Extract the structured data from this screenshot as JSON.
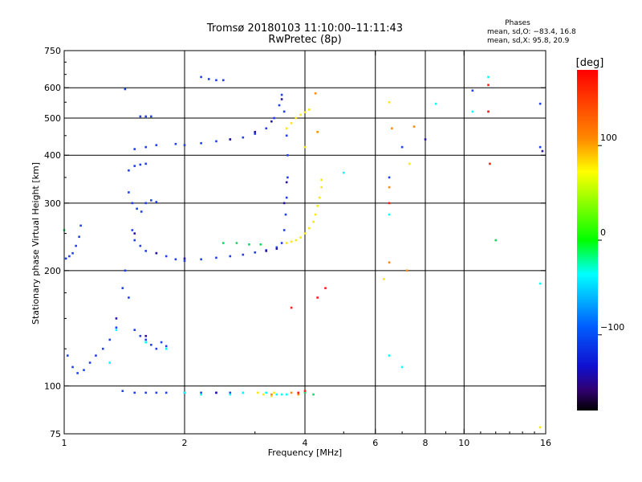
{
  "chart_data": {
    "type": "scatter",
    "title": "Tromsø 20180103 11:10:00–11:11:43",
    "subtitle": "RwPretec (8p)",
    "xlabel": "Frequency [MHz]",
    "ylabel": "Stationary phase Virtual Height [km]",
    "x_scale": "log",
    "y_scale": "log",
    "xlim": [
      1,
      16
    ],
    "ylim": [
      75,
      750
    ],
    "x_ticks": [
      1,
      2,
      4,
      6,
      8,
      10,
      16
    ],
    "x_tick_labels": [
      "1",
      "2",
      "4",
      "6",
      "8",
      "10",
      "16"
    ],
    "x_grid": [
      2,
      4,
      6,
      8,
      10
    ],
    "y_ticks": [
      75,
      100,
      200,
      300,
      400,
      500,
      600,
      750
    ],
    "y_tick_labels": [
      "75",
      "100",
      "200",
      "300",
      "400",
      "500",
      "600",
      "750"
    ],
    "y_grid": [
      100,
      200,
      300,
      400,
      500,
      600
    ],
    "grid": true,
    "legend": {
      "title": "Phases",
      "line_o": "mean, sd,O: −83.4, 16.8",
      "line_x": "mean, sd,X:  95.8, 20.9",
      "placement": "top-right"
    },
    "colorbar": {
      "label": "[deg]",
      "range": [
        -180,
        180
      ],
      "ticks": [
        100,
        0,
        -100
      ],
      "tick_labels": [
        "100",
        "0",
        "−100"
      ],
      "colormap": "rainbow"
    },
    "series": [
      {
        "phase": -95,
        "color": "#1f3ff0",
        "points": [
          [
            1.01,
            215
          ],
          [
            1.03,
            218
          ],
          [
            1.05,
            222
          ],
          [
            1.07,
            232
          ],
          [
            1.09,
            245
          ],
          [
            1.1,
            262
          ],
          [
            1.02,
            120
          ],
          [
            1.05,
            112
          ],
          [
            1.08,
            108
          ],
          [
            1.12,
            110
          ],
          [
            1.16,
            115
          ],
          [
            1.2,
            120
          ],
          [
            1.25,
            125
          ],
          [
            1.3,
            132
          ],
          [
            1.35,
            142
          ],
          [
            1.4,
            180
          ],
          [
            1.42,
            200
          ],
          [
            1.45,
            170
          ],
          [
            1.5,
            140
          ],
          [
            1.55,
            135
          ],
          [
            1.6,
            132
          ],
          [
            1.65,
            128
          ],
          [
            1.7,
            125
          ],
          [
            1.75,
            130
          ],
          [
            1.8,
            127
          ],
          [
            1.45,
            365
          ],
          [
            1.5,
            375
          ],
          [
            1.55,
            378
          ],
          [
            1.6,
            380
          ],
          [
            1.45,
            320
          ],
          [
            1.48,
            300
          ],
          [
            1.52,
            290
          ],
          [
            1.56,
            285
          ],
          [
            1.6,
            300
          ],
          [
            1.65,
            305
          ],
          [
            1.7,
            302
          ],
          [
            1.48,
            255
          ],
          [
            1.5,
            240
          ],
          [
            1.55,
            232
          ],
          [
            1.6,
            225
          ],
          [
            1.7,
            222
          ],
          [
            1.8,
            218
          ],
          [
            1.9,
            214
          ],
          [
            2.0,
            212
          ],
          [
            2.2,
            214
          ],
          [
            2.4,
            216
          ],
          [
            2.6,
            218
          ],
          [
            2.8,
            220
          ],
          [
            3.0,
            223
          ],
          [
            3.2,
            226
          ],
          [
            3.4,
            230
          ],
          [
            3.5,
            236
          ],
          [
            3.55,
            255
          ],
          [
            3.58,
            280
          ],
          [
            3.6,
            310
          ],
          [
            3.62,
            350
          ],
          [
            3.62,
            400
          ],
          [
            3.6,
            450
          ],
          [
            3.55,
            520
          ],
          [
            3.5,
            575
          ],
          [
            3.45,
            540
          ],
          [
            3.35,
            500
          ],
          [
            3.2,
            470
          ],
          [
            3.0,
            455
          ],
          [
            2.8,
            445
          ],
          [
            2.6,
            440
          ],
          [
            2.4,
            435
          ],
          [
            2.2,
            430
          ],
          [
            2.0,
            425
          ],
          [
            1.9,
            428
          ],
          [
            1.7,
            425
          ],
          [
            1.6,
            420
          ],
          [
            1.5,
            415
          ],
          [
            1.55,
            505
          ],
          [
            1.6,
            505
          ],
          [
            1.65,
            505
          ],
          [
            1.4,
            97
          ],
          [
            1.5,
            96
          ],
          [
            1.6,
            96
          ],
          [
            1.7,
            96
          ],
          [
            1.8,
            96
          ],
          [
            2.0,
            96
          ],
          [
            2.2,
            96
          ],
          [
            2.4,
            96
          ],
          [
            2.6,
            96
          ],
          [
            2.8,
            96
          ],
          [
            2.2,
            640
          ],
          [
            2.3,
            632
          ],
          [
            2.4,
            628
          ],
          [
            2.5,
            628
          ],
          [
            1.42,
            595
          ],
          [
            15.5,
            545
          ],
          [
            15.5,
            420
          ],
          [
            10.5,
            590
          ],
          [
            6.5,
            350
          ],
          [
            7.0,
            420
          ]
        ]
      },
      {
        "phase": -135,
        "color": "#2a14a8",
        "points": [
          [
            1.5,
            250
          ],
          [
            1.7,
            222
          ],
          [
            2.0,
            215
          ],
          [
            2.6,
            440
          ],
          [
            3.0,
            460
          ],
          [
            3.3,
            490
          ],
          [
            3.5,
            560
          ],
          [
            3.55,
            300
          ],
          [
            3.6,
            340
          ],
          [
            3.4,
            228
          ],
          [
            3.2,
            225
          ],
          [
            1.35,
            150
          ],
          [
            1.6,
            135
          ],
          [
            2.4,
            96
          ],
          [
            15.7,
            410
          ],
          [
            8.0,
            440
          ]
        ]
      },
      {
        "phase": 5,
        "color": "#00ffff",
        "points": [
          [
            1.35,
            140
          ],
          [
            1.3,
            115
          ],
          [
            1.6,
            130
          ],
          [
            1.8,
            125
          ],
          [
            2.0,
            96
          ],
          [
            2.2,
            95
          ],
          [
            2.6,
            95
          ],
          [
            2.8,
            96
          ],
          [
            3.2,
            96
          ],
          [
            3.4,
            95
          ],
          [
            3.5,
            95
          ],
          [
            3.6,
            95
          ],
          [
            8.5,
            545
          ],
          [
            10.5,
            520
          ],
          [
            11.5,
            640
          ],
          [
            11.5,
            520
          ],
          [
            6.5,
            120
          ],
          [
            7.0,
            112
          ],
          [
            15.5,
            185
          ],
          [
            6.5,
            280
          ],
          [
            5.0,
            360
          ]
        ]
      },
      {
        "phase": 40,
        "color": "#18d860",
        "points": [
          [
            2.5,
            236
          ],
          [
            2.7,
            236
          ],
          [
            2.9,
            234
          ],
          [
            3.1,
            234
          ],
          [
            4.0,
            96
          ],
          [
            4.2,
            95
          ],
          [
            1.0,
            255
          ],
          [
            12.0,
            240
          ]
        ]
      },
      {
        "phase": 105,
        "color": "#f7e816",
        "points": [
          [
            3.6,
            236
          ],
          [
            3.7,
            238
          ],
          [
            3.8,
            240
          ],
          [
            3.9,
            244
          ],
          [
            4.0,
            250
          ],
          [
            4.1,
            258
          ],
          [
            4.2,
            268
          ],
          [
            4.25,
            280
          ],
          [
            4.3,
            295
          ],
          [
            4.35,
            310
          ],
          [
            4.4,
            330
          ],
          [
            4.4,
            345
          ],
          [
            3.6,
            470
          ],
          [
            3.7,
            485
          ],
          [
            3.8,
            500
          ],
          [
            3.9,
            510
          ],
          [
            4.0,
            518
          ],
          [
            4.1,
            526
          ],
          [
            3.05,
            96
          ],
          [
            3.15,
            95
          ],
          [
            3.3,
            94
          ],
          [
            3.35,
            96
          ],
          [
            4.0,
            420
          ],
          [
            6.5,
            550
          ],
          [
            7.3,
            380
          ],
          [
            15.5,
            78
          ],
          [
            6.3,
            190
          ],
          [
            3.6,
            470
          ]
        ]
      },
      {
        "phase": 145,
        "color": "#ff8a10",
        "points": [
          [
            4.25,
            580
          ],
          [
            4.3,
            460
          ],
          [
            3.85,
            95
          ],
          [
            3.7,
            96
          ],
          [
            6.6,
            470
          ],
          [
            7.5,
            475
          ],
          [
            6.5,
            330
          ],
          [
            6.5,
            210
          ],
          [
            7.2,
            200
          ],
          [
            3.3,
            95
          ]
        ]
      },
      {
        "phase": 170,
        "color": "#ff1a1a",
        "points": [
          [
            3.7,
            160
          ],
          [
            4.3,
            170
          ],
          [
            4.5,
            180
          ],
          [
            11.5,
            610
          ],
          [
            11.5,
            520
          ],
          [
            6.5,
            300
          ],
          [
            11.6,
            380
          ],
          [
            3.85,
            96
          ],
          [
            4.0,
            97
          ]
        ]
      }
    ]
  }
}
